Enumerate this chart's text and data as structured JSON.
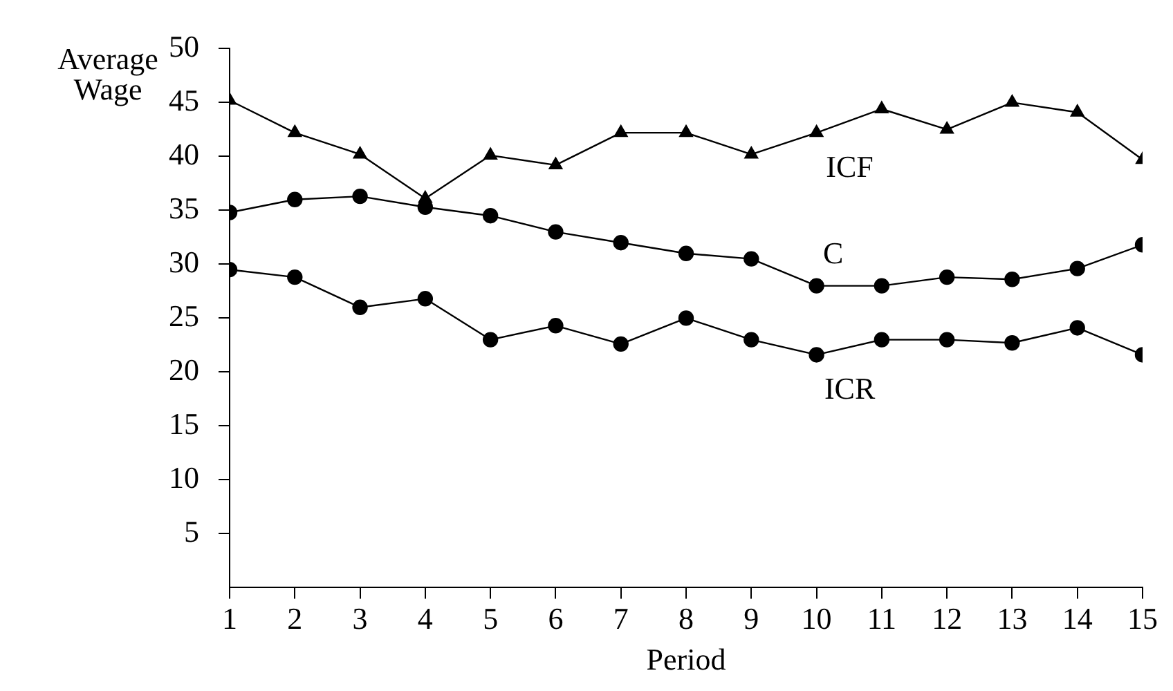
{
  "chart_data": {
    "type": "line",
    "xlabel": "Period",
    "ylabel": "Average Wage",
    "x": [
      1,
      2,
      3,
      4,
      5,
      6,
      7,
      8,
      9,
      10,
      11,
      12,
      13,
      14,
      15
    ],
    "xlim": [
      1,
      15
    ],
    "xticks": [
      1,
      2,
      3,
      4,
      5,
      6,
      7,
      8,
      9,
      10,
      11,
      12,
      13,
      14,
      15
    ],
    "ylim": [
      0,
      50
    ],
    "yticks": [
      5,
      10,
      15,
      20,
      25,
      30,
      35,
      40,
      45,
      50
    ],
    "grid": false,
    "legend": false,
    "series": [
      {
        "name": "ICF",
        "color": "#000000",
        "marker": "triangle",
        "values": [
          45.2,
          42.2,
          40.2,
          36.1,
          40.1,
          39.2,
          42.2,
          42.2,
          40.2,
          42.2,
          44.4,
          42.5,
          45,
          44.1,
          39.7
        ]
      },
      {
        "name": "C",
        "color": "#000000",
        "marker": "circle",
        "values": [
          34.8,
          36,
          36.3,
          35.3,
          34.5,
          33,
          32,
          31,
          30.5,
          28,
          28,
          28.8,
          28.6,
          29.6,
          31.8
        ]
      },
      {
        "name": "ICR",
        "color": "#000000",
        "marker": "circle",
        "values": [
          29.5,
          28.8,
          26,
          26.8,
          23,
          24.3,
          22.6,
          25,
          23,
          21.6,
          23,
          23,
          22.7,
          24.1,
          21.6
        ]
      }
    ]
  }
}
